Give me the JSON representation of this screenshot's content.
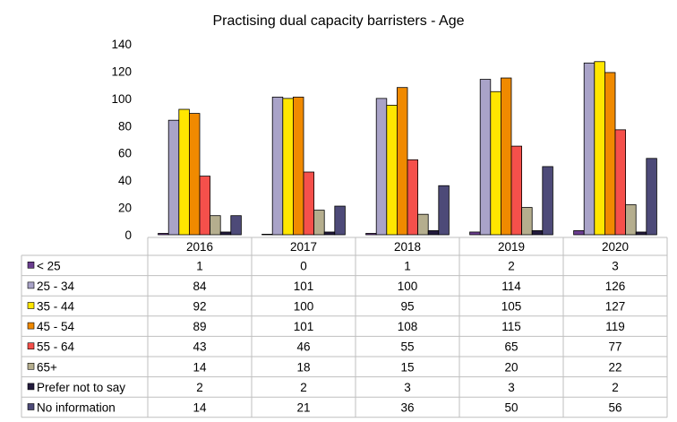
{
  "chart_data": {
    "type": "bar",
    "title": "Practising dual capacity barristers - Age",
    "categories": [
      "2016",
      "2017",
      "2018",
      "2019",
      "2020"
    ],
    "ylim": [
      0,
      140
    ],
    "yticks": [
      0,
      20,
      40,
      60,
      80,
      100,
      120,
      140
    ],
    "grid": false,
    "legend": "data-table-below",
    "series": [
      {
        "name": "< 25",
        "color": "#6a3d8f",
        "values": [
          1,
          0,
          1,
          2,
          3
        ]
      },
      {
        "name": "25 - 34",
        "color": "#a9a3c8",
        "values": [
          84,
          101,
          100,
          114,
          126
        ]
      },
      {
        "name": "35 - 44",
        "color": "#ffe600",
        "values": [
          92,
          100,
          95,
          105,
          127
        ]
      },
      {
        "name": "45 - 54",
        "color": "#f08a00",
        "values": [
          89,
          101,
          108,
          115,
          119
        ]
      },
      {
        "name": "55 - 64",
        "color": "#f5504b",
        "values": [
          43,
          46,
          55,
          65,
          77
        ]
      },
      {
        "name": "65+",
        "color": "#b5ae8e",
        "values": [
          14,
          18,
          15,
          20,
          22
        ]
      },
      {
        "name": "Prefer not to say",
        "color": "#221a3c",
        "values": [
          2,
          2,
          3,
          3,
          2
        ]
      },
      {
        "name": "No information",
        "color": "#4d4a78",
        "values": [
          14,
          21,
          36,
          50,
          56
        ]
      }
    ]
  }
}
